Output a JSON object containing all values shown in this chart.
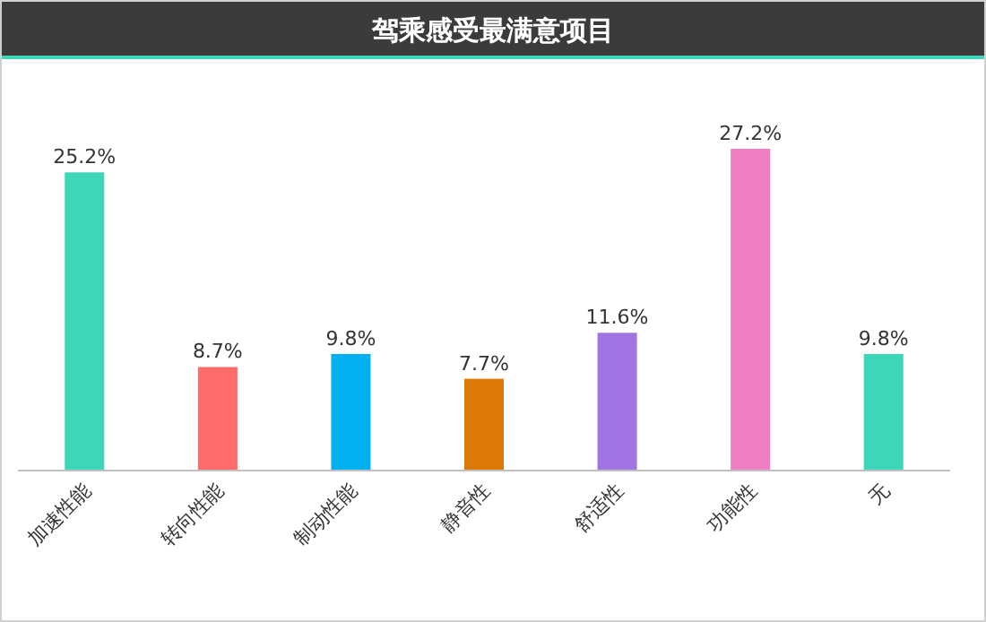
{
  "chart_data": {
    "type": "bar",
    "title": "驾乘感受最满意项目",
    "categories": [
      "加速性能",
      "转向性能",
      "制动性能",
      "静音性",
      "舒适性",
      "功能性",
      "无"
    ],
    "values": [
      25.2,
      8.7,
      9.8,
      7.7,
      11.6,
      27.2,
      9.8
    ],
    "value_labels": [
      "25.2%",
      "8.7%",
      "9.8%",
      "7.7%",
      "11.6%",
      "27.2%",
      "9.8%"
    ],
    "colors": [
      "#3dd6b9",
      "#ff6b6b",
      "#00b0ef",
      "#dc7a05",
      "#a074e3",
      "#ef7ec3",
      "#3dd6b9"
    ]
  }
}
